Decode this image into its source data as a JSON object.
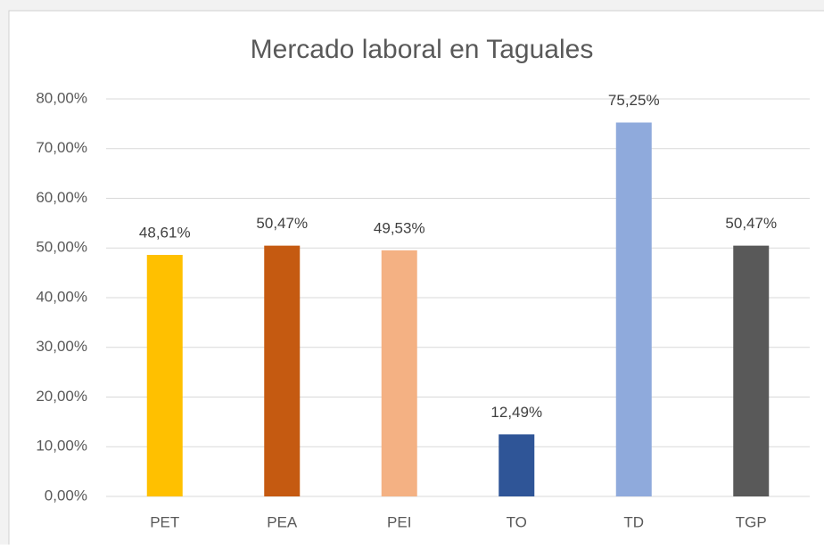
{
  "chart_data": {
    "type": "bar",
    "title": "Mercado laboral en Taguales",
    "categories": [
      "PET",
      "PEA",
      "PEI",
      "TO",
      "TD",
      "TGP"
    ],
    "values": [
      48.61,
      50.47,
      49.53,
      12.49,
      75.25,
      50.47
    ],
    "value_labels": [
      "48,61%",
      "50,47%",
      "49,53%",
      "12,49%",
      "75,25%",
      "50,47%"
    ],
    "colors": [
      "#ffc000",
      "#c55a11",
      "#f4b183",
      "#2f5597",
      "#8faadc",
      "#595959"
    ],
    "ylim": [
      0,
      80
    ],
    "yticks": [
      {
        "value": 0,
        "label": "0,00%"
      },
      {
        "value": 10,
        "label": "10,00%"
      },
      {
        "value": 20,
        "label": "20,00%"
      },
      {
        "value": 30,
        "label": "30,00%"
      },
      {
        "value": 40,
        "label": "40,00%"
      },
      {
        "value": 50,
        "label": "50,00%"
      },
      {
        "value": 60,
        "label": "60,00%"
      },
      {
        "value": 70,
        "label": "70,00%"
      },
      {
        "value": 80,
        "label": "80,00%"
      }
    ],
    "grid": true
  }
}
